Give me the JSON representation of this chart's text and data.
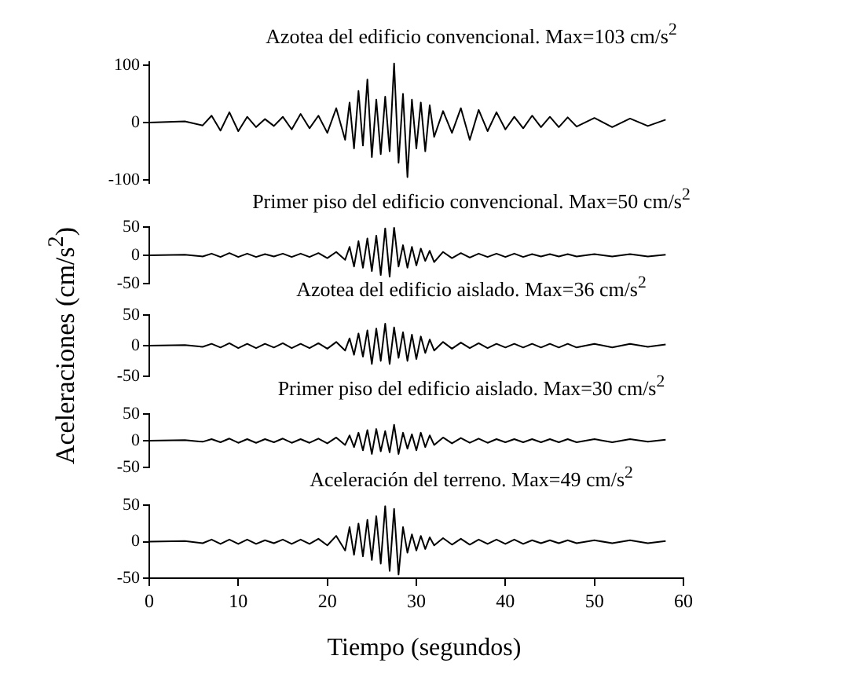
{
  "chart_data": [
    {
      "type": "line",
      "title": "Azotea del edificio convencional. Max=103 cm/s$^{2}$",
      "ylabel": "Aceleraciones (cm/s$^{2}$)",
      "color": "#000000",
      "grid": false,
      "tick_labels": "y",
      "xlim": [
        0,
        60
      ],
      "ylim": [
        -105,
        105
      ],
      "yticks": [
        -100,
        0,
        100
      ],
      "x": [
        0,
        4,
        6,
        7,
        8,
        9,
        10,
        11,
        12,
        13,
        14,
        15,
        16,
        17,
        18,
        19,
        20,
        21,
        22,
        22.5,
        23,
        23.5,
        24,
        24.5,
        25,
        25.5,
        26,
        26.5,
        27,
        27.5,
        28,
        28.5,
        29,
        29.5,
        30,
        30.5,
        31,
        31.5,
        32,
        33,
        34,
        35,
        36,
        37,
        38,
        39,
        40,
        41,
        42,
        43,
        44,
        45,
        46,
        47,
        48,
        50,
        52,
        54,
        56,
        58
      ],
      "values": [
        0,
        2,
        -5,
        12,
        -14,
        18,
        -15,
        10,
        -8,
        6,
        -6,
        10,
        -12,
        15,
        -10,
        12,
        -18,
        25,
        -30,
        35,
        -45,
        55,
        -40,
        75,
        -60,
        40,
        -55,
        45,
        -50,
        103,
        -70,
        50,
        -95,
        40,
        -45,
        35,
        -50,
        30,
        -25,
        20,
        -18,
        25,
        -30,
        22,
        -15,
        18,
        -12,
        10,
        -10,
        12,
        -8,
        10,
        -8,
        9,
        -7,
        8,
        -8,
        7,
        -6,
        5
      ]
    },
    {
      "type": "line",
      "title": "Primer piso del edificio convencional. Max=50 cm/s$^{2}$",
      "color": "#000000",
      "grid": false,
      "tick_labels": "y",
      "xlim": [
        0,
        60
      ],
      "ylim": [
        -50,
        50
      ],
      "yticks": [
        -50,
        0,
        50
      ],
      "x": [
        0,
        4,
        6,
        7,
        8,
        9,
        10,
        11,
        12,
        13,
        14,
        15,
        16,
        17,
        18,
        19,
        20,
        21,
        22,
        22.5,
        23,
        23.5,
        24,
        24.5,
        25,
        25.5,
        26,
        26.5,
        27,
        27.5,
        28,
        28.5,
        29,
        29.5,
        30,
        30.5,
        31,
        31.5,
        32,
        33,
        34,
        35,
        36,
        37,
        38,
        39,
        40,
        41,
        42,
        43,
        44,
        45,
        46,
        47,
        48,
        50,
        52,
        54,
        56,
        58
      ],
      "values": [
        0,
        1,
        -2,
        3,
        -3,
        4,
        -3,
        3,
        -3,
        2,
        -2,
        3,
        -3,
        3,
        -3,
        4,
        -5,
        6,
        -8,
        15,
        -20,
        25,
        -22,
        30,
        -28,
        35,
        -35,
        48,
        -38,
        50,
        -20,
        18,
        -22,
        15,
        -18,
        12,
        -10,
        8,
        -12,
        6,
        -5,
        4,
        -4,
        3,
        -3,
        3,
        -3,
        3,
        -3,
        2,
        -2,
        2,
        -2,
        2,
        -2,
        2,
        -2,
        2,
        -2,
        1
      ]
    },
    {
      "type": "line",
      "title": "Azotea del edificio aislado. Max=36 cm/s$^{2}$",
      "color": "#000000",
      "grid": false,
      "tick_labels": "y",
      "xlim": [
        0,
        60
      ],
      "ylim": [
        -50,
        50
      ],
      "yticks": [
        -50,
        0,
        50
      ],
      "x": [
        0,
        4,
        6,
        7,
        8,
        9,
        10,
        11,
        12,
        13,
        14,
        15,
        16,
        17,
        18,
        19,
        20,
        21,
        22,
        22.5,
        23,
        23.5,
        24,
        24.5,
        25,
        25.5,
        26,
        26.5,
        27,
        27.5,
        28,
        28.5,
        29,
        29.5,
        30,
        30.5,
        31,
        31.5,
        32,
        33,
        34,
        35,
        36,
        37,
        38,
        39,
        40,
        41,
        42,
        43,
        44,
        45,
        46,
        47,
        48,
        50,
        52,
        54,
        56,
        58
      ],
      "values": [
        0,
        1,
        -2,
        3,
        -3,
        4,
        -4,
        3,
        -4,
        3,
        -3,
        4,
        -4,
        3,
        -4,
        4,
        -5,
        6,
        -8,
        12,
        -15,
        20,
        -18,
        25,
        -30,
        28,
        -25,
        36,
        -30,
        30,
        -20,
        22,
        -25,
        18,
        -22,
        15,
        -12,
        10,
        -8,
        6,
        -5,
        5,
        -4,
        4,
        -4,
        3,
        -3,
        3,
        -3,
        3,
        -3,
        3,
        -3,
        3,
        -3,
        3,
        -3,
        3,
        -2,
        2
      ]
    },
    {
      "type": "line",
      "title": "Primer piso del edificio aislado. Max=30 cm/s$^{2}$",
      "color": "#000000",
      "grid": false,
      "tick_labels": "y",
      "xlim": [
        0,
        60
      ],
      "ylim": [
        -50,
        50
      ],
      "yticks": [
        -50,
        0,
        50
      ],
      "x": [
        0,
        4,
        6,
        7,
        8,
        9,
        10,
        11,
        12,
        13,
        14,
        15,
        16,
        17,
        18,
        19,
        20,
        21,
        22,
        22.5,
        23,
        23.5,
        24,
        24.5,
        25,
        25.5,
        26,
        26.5,
        27,
        27.5,
        28,
        28.5,
        29,
        29.5,
        30,
        30.5,
        31,
        31.5,
        32,
        33,
        34,
        35,
        36,
        37,
        38,
        39,
        40,
        41,
        42,
        43,
        44,
        45,
        46,
        47,
        48,
        50,
        52,
        54,
        56,
        58
      ],
      "values": [
        0,
        1,
        -2,
        3,
        -3,
        4,
        -4,
        3,
        -4,
        3,
        -3,
        4,
        -4,
        3,
        -4,
        4,
        -5,
        6,
        -8,
        10,
        -12,
        15,
        -18,
        20,
        -25,
        22,
        -20,
        18,
        -22,
        30,
        -25,
        15,
        -15,
        12,
        -18,
        15,
        -12,
        10,
        -8,
        6,
        -5,
        5,
        -4,
        4,
        -4,
        3,
        -3,
        3,
        -3,
        3,
        -3,
        3,
        -3,
        3,
        -3,
        3,
        -3,
        3,
        -2,
        2
      ]
    },
    {
      "type": "line",
      "title": "Aceleración del terreno. Max=49 cm/s$^{2}$",
      "xlabel": "Tiempo (segundos)",
      "color": "#000000",
      "grid": false,
      "xlim": [
        0,
        60
      ],
      "xticks": [
        0,
        10,
        20,
        30,
        40,
        50,
        60
      ],
      "ylim": [
        -50,
        50
      ],
      "yticks": [
        -50,
        0,
        50
      ],
      "x": [
        0,
        4,
        6,
        7,
        8,
        9,
        10,
        11,
        12,
        13,
        14,
        15,
        16,
        17,
        18,
        19,
        20,
        21,
        22,
        22.5,
        23,
        23.5,
        24,
        24.5,
        25,
        25.5,
        26,
        26.5,
        27,
        27.5,
        28,
        28.5,
        29,
        29.5,
        30,
        30.5,
        31,
        31.5,
        32,
        33,
        34,
        35,
        36,
        37,
        38,
        39,
        40,
        41,
        42,
        43,
        44,
        45,
        46,
        47,
        48,
        50,
        52,
        54,
        56,
        58
      ],
      "values": [
        0,
        1,
        -2,
        3,
        -3,
        3,
        -3,
        3,
        -3,
        2,
        -2,
        3,
        -3,
        3,
        -3,
        4,
        -5,
        8,
        -12,
        20,
        -18,
        25,
        -20,
        30,
        -25,
        35,
        -30,
        49,
        -40,
        45,
        -45,
        20,
        -15,
        10,
        -12,
        8,
        -10,
        6,
        -5,
        5,
        -4,
        4,
        -4,
        3,
        -3,
        3,
        -3,
        3,
        -3,
        2,
        -2,
        2,
        -2,
        2,
        -2,
        2,
        -2,
        2,
        -2,
        1
      ]
    }
  ]
}
